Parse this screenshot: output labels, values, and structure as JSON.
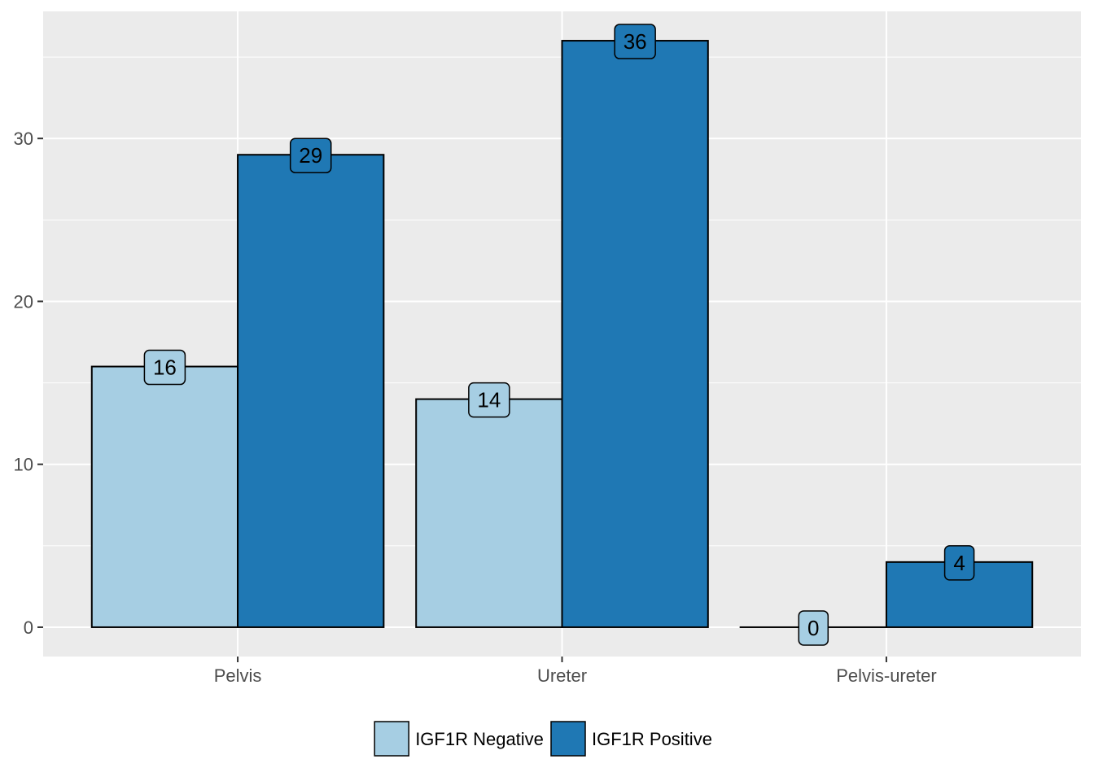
{
  "chart_data": {
    "type": "bar",
    "title": "",
    "xlabel": "",
    "ylabel": "",
    "categories": [
      "Pelvis",
      "Ureter",
      "Pelvis-ureter"
    ],
    "series": [
      {
        "name": "IGF1R Negative",
        "values": [
          16,
          14,
          0
        ],
        "color": "#a6cee3"
      },
      {
        "name": "IGF1R Positive",
        "values": [
          29,
          36,
          4
        ],
        "color": "#1f78b4"
      }
    ],
    "ylim": [
      -1.8,
      37.8
    ],
    "yticks": [
      0,
      10,
      20,
      30
    ],
    "grid": true,
    "panel_background": "#ebebeb",
    "gridline_color": "#ffffff",
    "legend_position": "bottom"
  }
}
